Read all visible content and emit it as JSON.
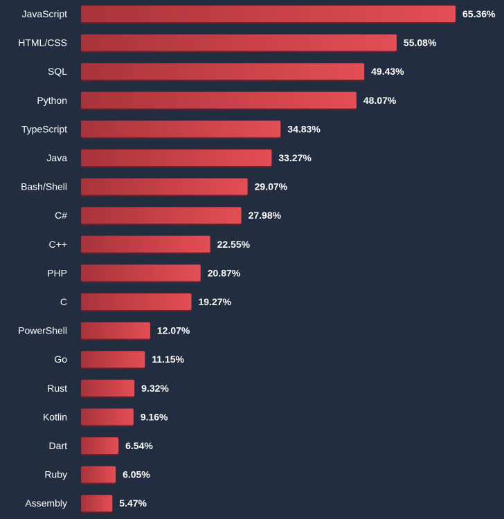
{
  "chart_data": {
    "type": "bar",
    "orientation": "horizontal",
    "title": "",
    "xlabel": "",
    "ylabel": "",
    "value_suffix": "%",
    "categories": [
      "JavaScript",
      "HTML/CSS",
      "SQL",
      "Python",
      "TypeScript",
      "Java",
      "Bash/Shell",
      "C#",
      "C++",
      "PHP",
      "C",
      "PowerShell",
      "Go",
      "Rust",
      "Kotlin",
      "Dart",
      "Ruby",
      "Assembly"
    ],
    "values": [
      65.36,
      55.08,
      49.43,
      48.07,
      34.83,
      33.27,
      29.07,
      27.98,
      22.55,
      20.87,
      19.27,
      12.07,
      11.15,
      9.32,
      9.16,
      6.54,
      6.05,
      5.47
    ],
    "xlim": [
      0,
      65.36
    ],
    "grid": false,
    "legend": "none",
    "colors": {
      "background": "#222d42",
      "bar_start": "#a8333a",
      "bar_end": "#e44e55",
      "bar_shadow": "#6f1f25",
      "text": "#ffffff"
    }
  }
}
